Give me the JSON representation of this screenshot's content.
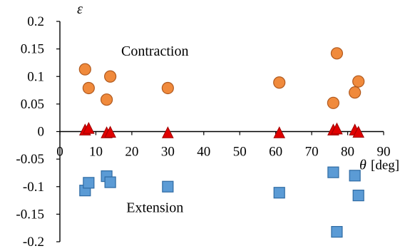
{
  "chart_data": {
    "type": "scatter",
    "title": "",
    "ylabel": "ε",
    "xlabel_symbol": "θ",
    "xlabel_unit": "[deg]",
    "xlim": [
      0,
      90
    ],
    "ylim": [
      -0.2,
      0.2
    ],
    "x_ticks": [
      0,
      10,
      20,
      30,
      40,
      50,
      60,
      70,
      80,
      90
    ],
    "x_tick_labels": [
      "0",
      "10",
      "20",
      "30",
      "40",
      "50",
      "60",
      "70",
      "80",
      "90"
    ],
    "y_ticks": [
      0.2,
      0.15,
      0.1,
      0.05,
      0,
      -0.05,
      -0.1,
      -0.15,
      -0.2
    ],
    "y_tick_labels": [
      "0.2",
      "0.15",
      "0.1",
      "0.05",
      "0",
      "-0.05",
      "-0.1",
      "-0.15",
      "-0.2"
    ],
    "grid": false,
    "legend": "none",
    "annotations": [
      {
        "text": "Contraction",
        "x": 28,
        "y": 0.147
      },
      {
        "text": "Extension",
        "x": 28,
        "y": -0.137
      }
    ],
    "series": [
      {
        "marker": "circle",
        "color": "#f08a3c",
        "edge": "#b0591e",
        "points": [
          {
            "x": 7,
            "y": 0.113
          },
          {
            "x": 8,
            "y": 0.079
          },
          {
            "x": 13,
            "y": 0.058
          },
          {
            "x": 14,
            "y": 0.1
          },
          {
            "x": 30,
            "y": 0.079
          },
          {
            "x": 61,
            "y": 0.089
          },
          {
            "x": 76,
            "y": 0.052
          },
          {
            "x": 77,
            "y": 0.142
          },
          {
            "x": 82,
            "y": 0.071
          },
          {
            "x": 83,
            "y": 0.091
          }
        ]
      },
      {
        "marker": "triangle",
        "color": "#e00000",
        "edge": "#a00000",
        "points": [
          {
            "x": 7,
            "y": 0.001
          },
          {
            "x": 8,
            "y": 0.004
          },
          {
            "x": 13,
            "y": -0.004
          },
          {
            "x": 14,
            "y": -0.003
          },
          {
            "x": 30,
            "y": -0.004
          },
          {
            "x": 61,
            "y": -0.004
          },
          {
            "x": 76,
            "y": 0.001
          },
          {
            "x": 77,
            "y": 0.003
          },
          {
            "x": 82,
            "y": 0.001
          },
          {
            "x": 83,
            "y": -0.003
          }
        ]
      },
      {
        "marker": "square",
        "color": "#5b9bd5",
        "edge": "#2e6aa3",
        "points": [
          {
            "x": 7,
            "y": -0.107
          },
          {
            "x": 8,
            "y": -0.093
          },
          {
            "x": 13,
            "y": -0.081
          },
          {
            "x": 14,
            "y": -0.092
          },
          {
            "x": 30,
            "y": -0.1
          },
          {
            "x": 61,
            "y": -0.111
          },
          {
            "x": 76,
            "y": -0.074
          },
          {
            "x": 77,
            "y": -0.182
          },
          {
            "x": 82,
            "y": -0.08
          },
          {
            "x": 83,
            "y": -0.116
          }
        ]
      }
    ]
  }
}
